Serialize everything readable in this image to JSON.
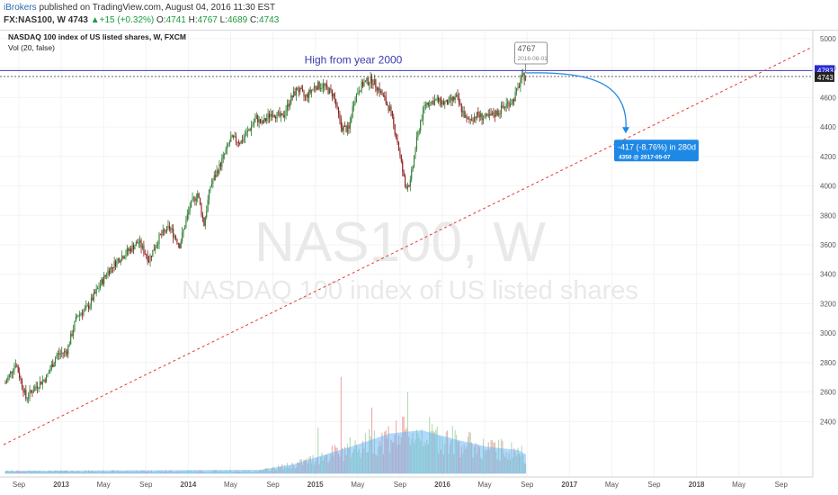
{
  "header": {
    "publisher": "iBrokers",
    "published_text": " published on TradingView.com, August 04, 2016 11:30 EST",
    "symbol": "FX:NAS100, W",
    "price": "4743",
    "change": "+15 (+0.32%)",
    "o_label": "O:",
    "o": "4741",
    "h_label": "H:",
    "h": "4767",
    "l_label": "L:",
    "l": "4689",
    "c_label": "C:",
    "c": "4743",
    "up_arrow": "▲"
  },
  "legend": {
    "title": "NASDAQ 100 index of US listed shares, W, FXCM",
    "vol": "Vol (20, false)"
  },
  "watermark": {
    "main": "NAS100, W",
    "sub": "NASDAQ 100 index of US listed shares"
  },
  "annotations": {
    "high_label": "High from year 2000",
    "high_price": "4783",
    "current_price": "4743",
    "marker_value": "4767",
    "marker_date": "2016-08-01",
    "projection_line1": "-417 (-8.76%) in 280d",
    "projection_line2": "4350  @ 2017-05-07"
  },
  "colors": {
    "up": "#2e7d32",
    "down": "#8b1a1a",
    "vol_up": "#a5d6a7",
    "vol_down": "#ef9a9a",
    "vol_ma": "#64b5f6",
    "high_line": "#3f3fbf",
    "trendline": "#e53935",
    "projection": "#1e88e5"
  },
  "chart_data": {
    "type": "candlestick",
    "title": "NASDAQ 100 index of US listed shares, W, FXCM",
    "y_ticks": [
      2400,
      2600,
      2800,
      3000,
      3200,
      3400,
      3600,
      3800,
      4000,
      4200,
      4400,
      4600,
      4800,
      5000
    ],
    "ylim": [
      2170,
      5030
    ],
    "x_ticks": [
      "Sep",
      "2013",
      "May",
      "Sep",
      "2014",
      "May",
      "Sep",
      "2015",
      "May",
      "Sep",
      "2016",
      "May",
      "Sep",
      "2017",
      "May",
      "Sep",
      "2018",
      "May",
      "Sep"
    ],
    "price_path_weeks": [
      0,
      8,
      16,
      24,
      32,
      40,
      48,
      56,
      64,
      72,
      80,
      88,
      96,
      104,
      112,
      120,
      128,
      136,
      144,
      150,
      155,
      160,
      168,
      176,
      184,
      190,
      196,
      200,
      208,
      216,
      222,
      228,
      234,
      242,
      248,
      256,
      262,
      268,
      272,
      276,
      280,
      286,
      292,
      300,
      306,
      312,
      316,
      320,
      324,
      328,
      336,
      344,
      352,
      360,
      368,
      376,
      384,
      392,
      396,
      400,
      402,
      404,
      406
    ],
    "price_path_values": [
      2660,
      2800,
      2560,
      2640,
      2700,
      2850,
      2880,
      3120,
      3170,
      3300,
      3420,
      3500,
      3560,
      3620,
      3500,
      3650,
      3720,
      3600,
      3860,
      3950,
      3740,
      4000,
      4150,
      4320,
      4300,
      4380,
      4460,
      4420,
      4500,
      4460,
      4580,
      4660,
      4600,
      4680,
      4680,
      4620,
      4400,
      4380,
      4580,
      4660,
      4700,
      4720,
      4650,
      4520,
      4300,
      4000,
      4020,
      4260,
      4440,
      4560,
      4580,
      4560,
      4600,
      4440,
      4480,
      4460,
      4500,
      4560,
      4580,
      4660,
      4720,
      4740,
      4743
    ],
    "high_2000": 4783,
    "projection": {
      "change": -417,
      "change_pct": -8.76,
      "days": 280,
      "target": 4350,
      "target_date": "2017-05-07"
    },
    "volume_ma_path_weeks": [
      0,
      200,
      225,
      250,
      275,
      300,
      325,
      350,
      375,
      400,
      406
    ],
    "volume_ma_path_values": [
      0.02,
      0.03,
      0.08,
      0.17,
      0.26,
      0.36,
      0.39,
      0.31,
      0.24,
      0.21,
      0.17
    ],
    "volume_peaks": [
      {
        "week": 262,
        "value": 0.88
      },
      {
        "week": 314,
        "value": 0.74
      },
      {
        "week": 286,
        "value": 0.6
      },
      {
        "week": 244,
        "value": 0.42
      }
    ]
  }
}
